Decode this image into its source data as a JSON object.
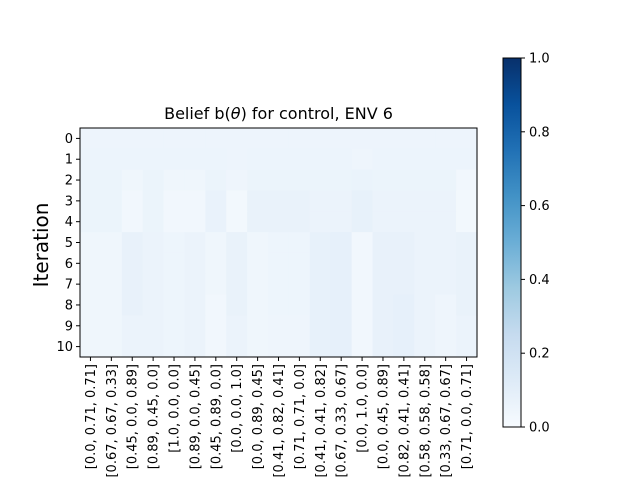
{
  "chart_data": {
    "type": "heatmap",
    "title_prefix": "Belief b(",
    "title_symbol": "θ",
    "title_suffix": ") for control, ENV 6",
    "xlabel": "",
    "ylabel": "Iteration",
    "rows": [
      "0",
      "1",
      "2",
      "3",
      "4",
      "5",
      "6",
      "7",
      "8",
      "9",
      "10"
    ],
    "columns": [
      "[0.0, 0.71, 0.71]",
      "[0.67, 0.67, 0.33]",
      "[0.45, 0.0, 0.89]",
      "[0.89, 0.45, 0.0]",
      "[1.0, 0.0, 0.0]",
      "[0.89, 0.0, 0.45]",
      "[0.45, 0.89, 0.0]",
      "[0.0, 0.0, 1.0]",
      "[0.0, 0.89, 0.45]",
      "[0.41, 0.82, 0.41]",
      "[0.71, 0.71, 0.0]",
      "[0.41, 0.41, 0.82]",
      "[0.67, 0.33, 0.67]",
      "[0.0, 1.0, 0.0]",
      "[0.0, 0.45, 0.89]",
      "[0.82, 0.41, 0.41]",
      "[0.58, 0.58, 0.58]",
      "[0.33, 0.67, 0.67]",
      "[0.71, 0.0, 0.71]"
    ],
    "values": [
      [
        0.052,
        0.052,
        0.052,
        0.052,
        0.052,
        0.052,
        0.052,
        0.052,
        0.052,
        0.052,
        0.052,
        0.052,
        0.052,
        0.052,
        0.052,
        0.052,
        0.052,
        0.052,
        0.052
      ],
      [
        0.053,
        0.053,
        0.053,
        0.053,
        0.053,
        0.053,
        0.053,
        0.052,
        0.053,
        0.053,
        0.053,
        0.053,
        0.053,
        0.045,
        0.053,
        0.053,
        0.053,
        0.053,
        0.053
      ],
      [
        0.058,
        0.058,
        0.04,
        0.058,
        0.04,
        0.04,
        0.058,
        0.045,
        0.058,
        0.058,
        0.058,
        0.058,
        0.058,
        0.065,
        0.058,
        0.058,
        0.058,
        0.058,
        0.03
      ],
      [
        0.058,
        0.058,
        0.03,
        0.058,
        0.03,
        0.03,
        0.07,
        0.025,
        0.072,
        0.072,
        0.072,
        0.06,
        0.06,
        0.078,
        0.062,
        0.062,
        0.062,
        0.062,
        0.025
      ],
      [
        0.058,
        0.058,
        0.03,
        0.058,
        0.03,
        0.03,
        0.07,
        0.025,
        0.072,
        0.072,
        0.072,
        0.06,
        0.06,
        0.078,
        0.062,
        0.062,
        0.062,
        0.062,
        0.025
      ],
      [
        0.04,
        0.04,
        0.075,
        0.06,
        0.05,
        0.06,
        0.04,
        0.072,
        0.04,
        0.05,
        0.05,
        0.082,
        0.085,
        0.03,
        0.075,
        0.075,
        0.06,
        0.06,
        0.072
      ],
      [
        0.04,
        0.04,
        0.075,
        0.06,
        0.05,
        0.06,
        0.04,
        0.072,
        0.04,
        0.05,
        0.05,
        0.082,
        0.085,
        0.03,
        0.075,
        0.075,
        0.06,
        0.06,
        0.072
      ],
      [
        0.04,
        0.04,
        0.075,
        0.06,
        0.05,
        0.06,
        0.04,
        0.072,
        0.04,
        0.05,
        0.05,
        0.082,
        0.085,
        0.03,
        0.075,
        0.075,
        0.06,
        0.06,
        0.072
      ],
      [
        0.04,
        0.04,
        0.075,
        0.06,
        0.05,
        0.06,
        0.03,
        0.072,
        0.04,
        0.05,
        0.05,
        0.082,
        0.085,
        0.03,
        0.075,
        0.085,
        0.06,
        0.045,
        0.072
      ],
      [
        0.04,
        0.04,
        0.06,
        0.06,
        0.05,
        0.06,
        0.03,
        0.06,
        0.04,
        0.045,
        0.045,
        0.082,
        0.085,
        0.03,
        0.075,
        0.085,
        0.06,
        0.045,
        0.06
      ],
      [
        0.04,
        0.04,
        0.06,
        0.06,
        0.05,
        0.06,
        0.03,
        0.06,
        0.04,
        0.045,
        0.045,
        0.082,
        0.085,
        0.03,
        0.075,
        0.085,
        0.06,
        0.045,
        0.06
      ]
    ],
    "vmin": 0.0,
    "vmax": 1.0,
    "colormap": "Blues",
    "colorbar_ticks": [
      "0.0",
      "0.2",
      "0.4",
      "0.6",
      "0.8",
      "1.0"
    ],
    "grid": false
  }
}
